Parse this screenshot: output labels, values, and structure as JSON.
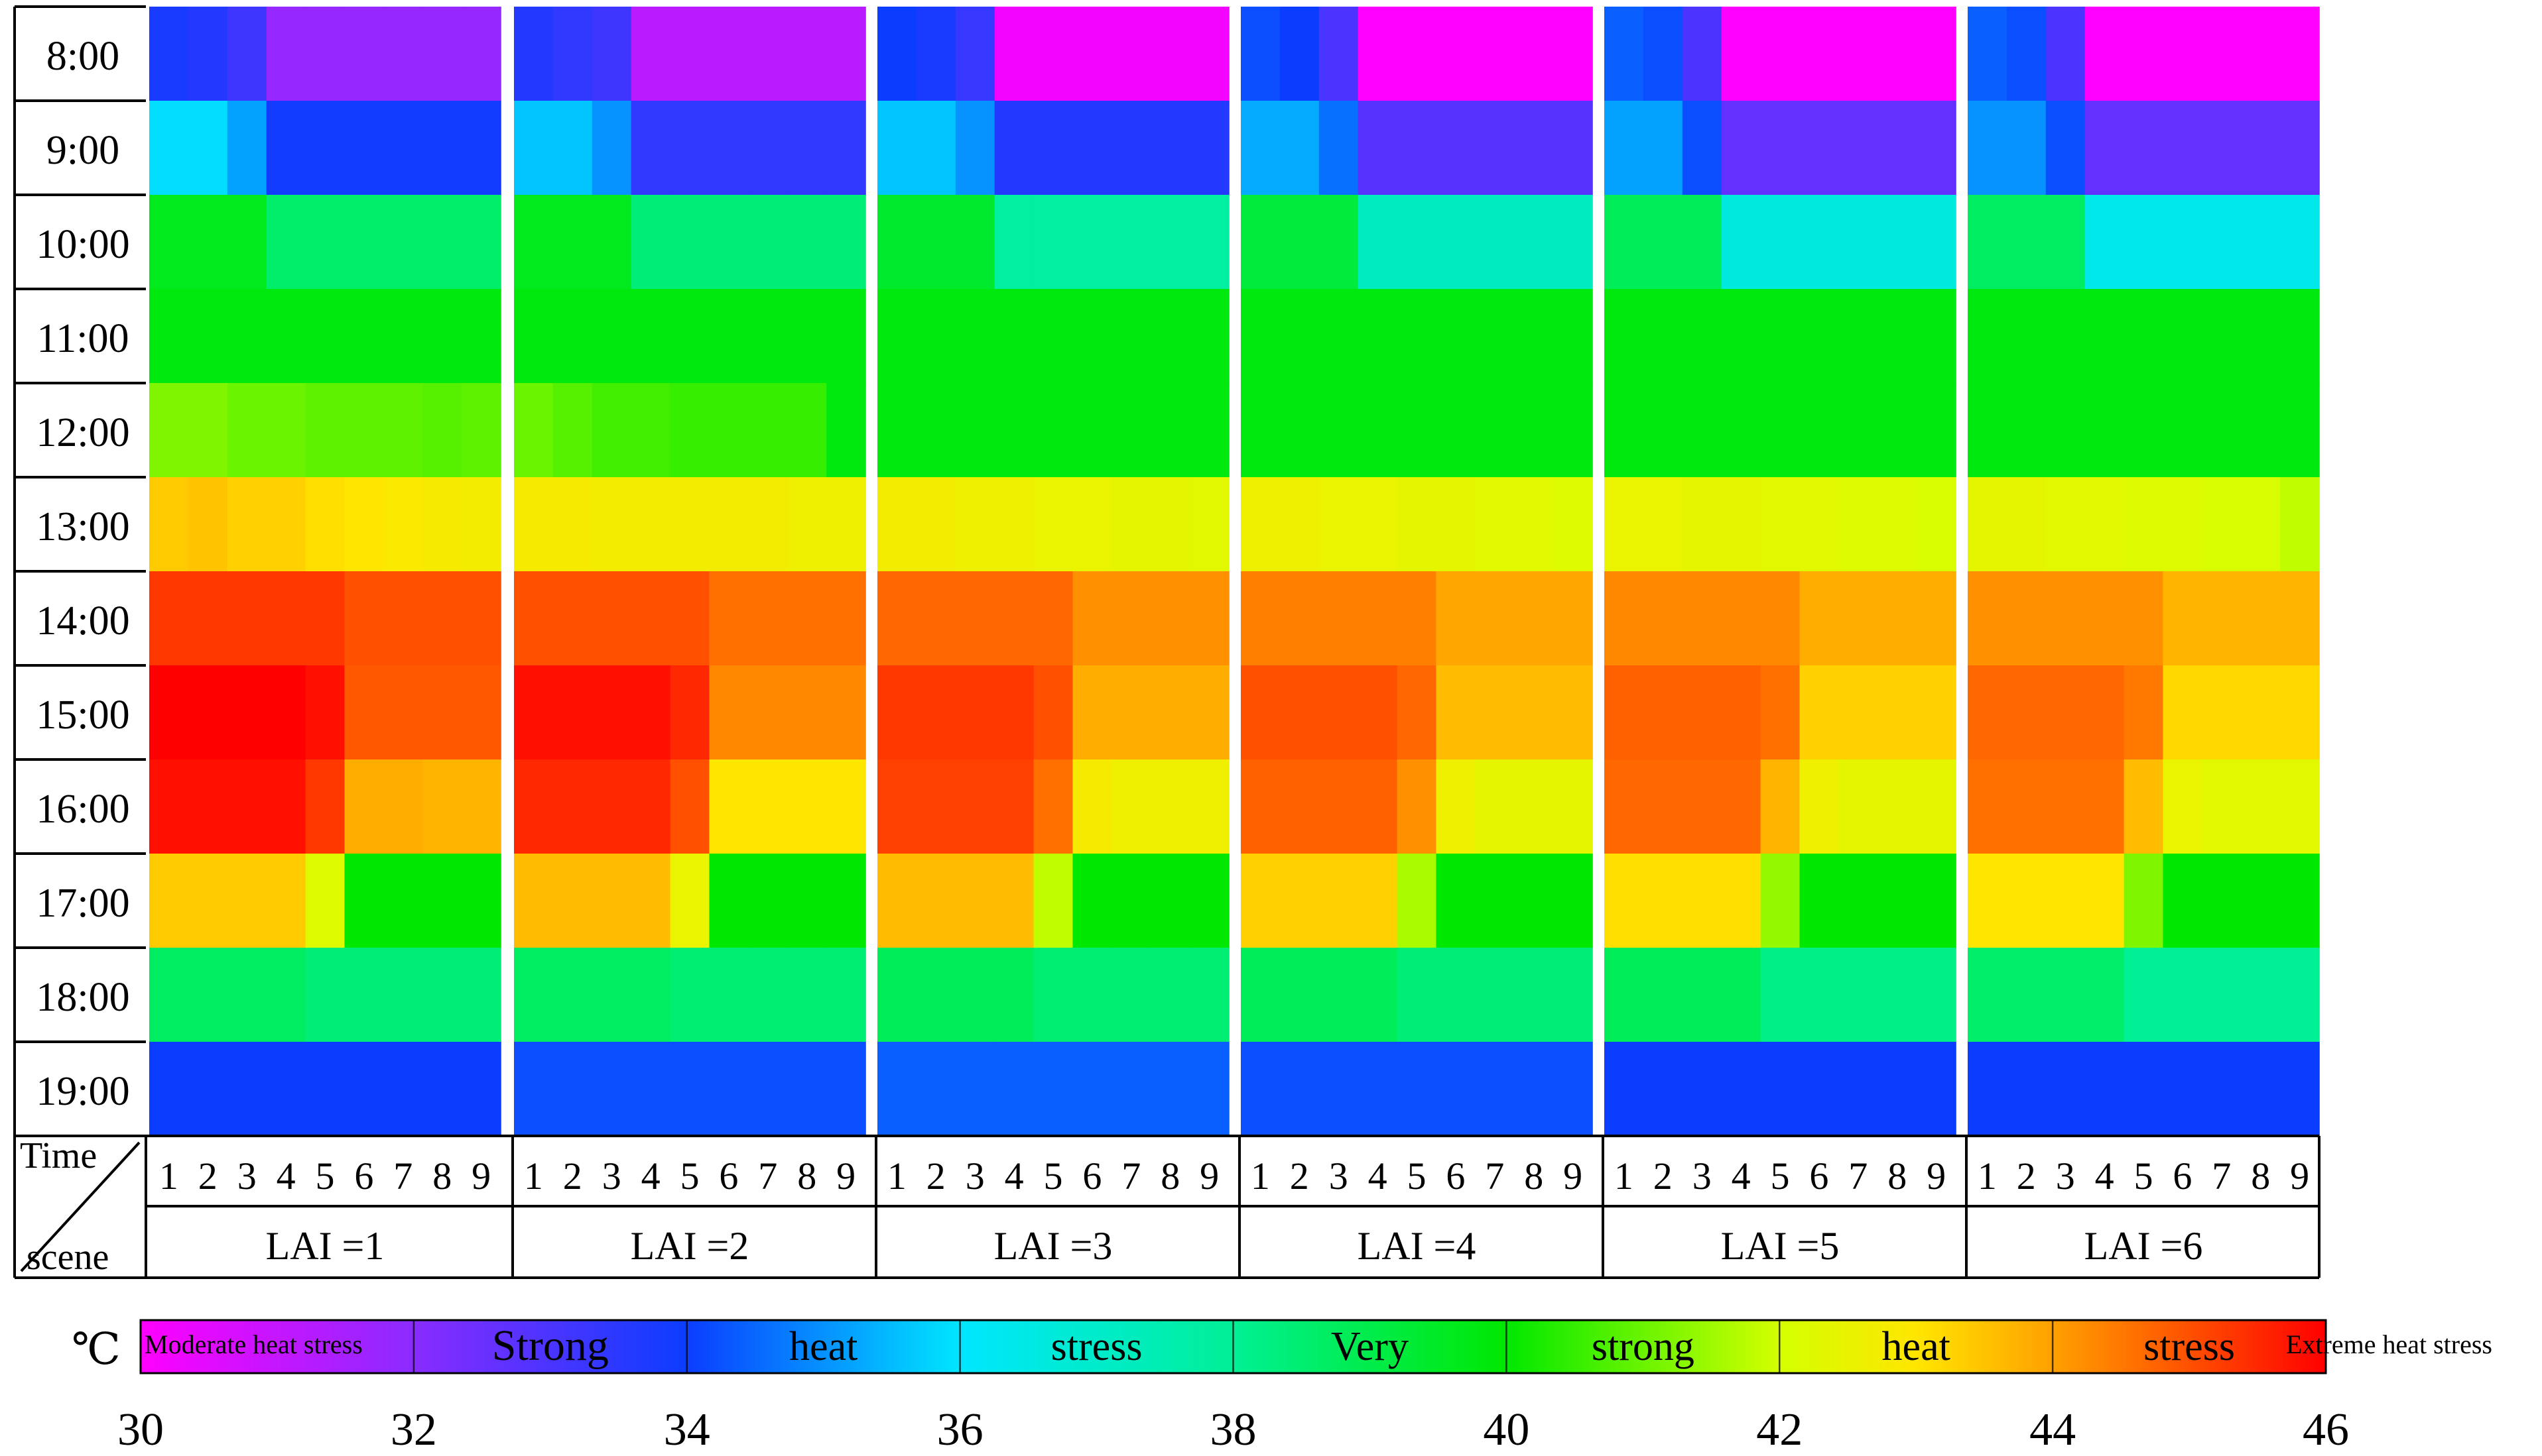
{
  "chart_data": {
    "type": "heatmap",
    "title": "",
    "unit": "℃",
    "corner": {
      "top": "Time",
      "bottom": "scene"
    },
    "times": [
      "8:00",
      "9:00",
      "10:00",
      "11:00",
      "12:00",
      "13:00",
      "14:00",
      "15:00",
      "16:00",
      "17:00",
      "18:00",
      "19:00"
    ],
    "scenes": [
      "1",
      "2",
      "3",
      "4",
      "5",
      "6",
      "7",
      "8",
      "9"
    ],
    "panels": [
      {
        "label": "LAI =1",
        "values": [
          [
            33.8,
            33.6,
            33.2,
            31.8,
            31.8,
            31.8,
            31.8,
            31.8,
            31.8
          ],
          [
            35.9,
            35.9,
            35.2,
            33.9,
            33.9,
            33.9,
            33.9,
            33.9,
            33.9
          ],
          [
            39.6,
            39.6,
            39.6,
            38.6,
            38.6,
            38.6,
            38.6,
            38.6,
            38.6
          ],
          [
            39.8,
            39.8,
            39.8,
            39.8,
            39.8,
            39.8,
            39.8,
            39.8,
            39.8
          ],
          [
            41.2,
            41.2,
            41.0,
            41.0,
            40.9,
            40.9,
            40.9,
            40.8,
            40.9
          ],
          [
            43.4,
            43.5,
            43.3,
            43.3,
            43.1,
            43.0,
            42.9,
            42.8,
            42.7
          ],
          [
            45.3,
            45.3,
            45.3,
            45.3,
            45.3,
            45.0,
            45.0,
            45.0,
            45.0
          ],
          [
            46.0,
            46.0,
            46.0,
            46.0,
            45.8,
            44.9,
            44.9,
            44.9,
            44.9
          ],
          [
            45.8,
            45.8,
            45.8,
            45.8,
            45.3,
            43.8,
            43.8,
            43.7,
            43.7
          ],
          [
            43.4,
            43.4,
            43.4,
            43.4,
            42.2,
            40.0,
            40.0,
            40.0,
            40.0
          ],
          [
            38.7,
            38.7,
            38.7,
            38.7,
            38.4,
            38.4,
            38.4,
            38.4,
            38.4
          ],
          [
            34.0,
            34.0,
            34.0,
            34.0,
            34.0,
            34.0,
            34.0,
            34.0,
            34.0
          ]
        ]
      },
      {
        "label": "LAI =2",
        "values": [
          [
            33.6,
            33.4,
            33.2,
            31.2,
            31.2,
            31.2,
            31.2,
            31.2,
            31.2
          ],
          [
            35.6,
            35.6,
            35.0,
            33.4,
            33.4,
            33.4,
            33.4,
            33.4,
            33.4
          ],
          [
            39.6,
            39.6,
            39.6,
            38.4,
            38.4,
            38.4,
            38.4,
            38.4,
            38.4
          ],
          [
            39.8,
            39.8,
            39.8,
            39.8,
            39.8,
            39.8,
            39.8,
            39.8,
            39.8
          ],
          [
            41.0,
            40.8,
            40.6,
            40.6,
            40.5,
            40.5,
            40.5,
            40.5,
            39.8
          ],
          [
            42.8,
            42.8,
            42.7,
            42.7,
            42.7,
            42.7,
            42.7,
            42.6,
            42.6
          ],
          [
            45.0,
            45.0,
            45.0,
            45.0,
            45.0,
            44.6,
            44.6,
            44.6,
            44.6
          ],
          [
            45.8,
            45.8,
            45.8,
            45.8,
            45.5,
            44.3,
            44.3,
            44.3,
            44.3
          ],
          [
            45.5,
            45.5,
            45.5,
            45.5,
            45.0,
            43.0,
            43.0,
            43.0,
            43.0
          ],
          [
            43.6,
            43.6,
            43.6,
            43.6,
            42.5,
            40.0,
            40.0,
            40.0,
            40.0
          ],
          [
            38.7,
            38.7,
            38.7,
            38.7,
            38.5,
            38.5,
            38.5,
            38.5,
            38.5
          ],
          [
            34.2,
            34.2,
            34.2,
            34.2,
            34.2,
            34.2,
            34.2,
            34.2,
            34.2
          ]
        ]
      },
      {
        "label": "LAI =3",
        "values": [
          [
            34.0,
            33.8,
            33.3,
            30.2,
            30.2,
            30.2,
            30.2,
            30.2,
            30.2
          ],
          [
            35.6,
            35.6,
            35.0,
            33.6,
            33.6,
            33.6,
            33.6,
            33.6,
            33.6
          ],
          [
            39.4,
            39.4,
            39.4,
            37.8,
            37.8,
            37.8,
            37.8,
            37.8,
            37.8
          ],
          [
            39.8,
            39.8,
            39.8,
            39.8,
            39.8,
            39.8,
            39.8,
            39.8,
            39.8
          ],
          [
            39.8,
            39.8,
            39.8,
            39.8,
            39.8,
            39.8,
            39.8,
            39.8,
            39.8
          ],
          [
            42.7,
            42.7,
            42.6,
            42.6,
            42.5,
            42.5,
            42.4,
            42.4,
            42.3
          ],
          [
            44.7,
            44.7,
            44.7,
            44.7,
            44.7,
            44.2,
            44.2,
            44.2,
            44.2
          ],
          [
            45.3,
            45.3,
            45.3,
            45.3,
            45.0,
            43.8,
            43.8,
            43.8,
            43.8
          ],
          [
            45.2,
            45.2,
            45.2,
            45.2,
            44.6,
            42.8,
            42.6,
            42.6,
            42.6
          ],
          [
            43.6,
            43.6,
            43.6,
            43.6,
            41.8,
            40.0,
            40.0,
            40.0,
            40.0
          ],
          [
            38.8,
            38.8,
            38.8,
            38.8,
            38.5,
            38.5,
            38.5,
            38.5,
            38.5
          ],
          [
            34.4,
            34.4,
            34.4,
            34.4,
            34.4,
            34.4,
            34.4,
            34.4,
            34.4
          ]
        ]
      },
      {
        "label": "LAI =4",
        "values": [
          [
            34.2,
            34.0,
            33.0,
            30.0,
            30.0,
            30.0,
            30.0,
            30.0,
            30.0
          ],
          [
            35.3,
            35.3,
            34.6,
            32.8,
            32.8,
            32.8,
            32.8,
            32.8,
            32.8
          ],
          [
            39.2,
            39.2,
            39.2,
            37.2,
            37.2,
            37.2,
            37.2,
            37.2,
            37.2
          ],
          [
            39.8,
            39.8,
            39.8,
            39.8,
            39.8,
            39.8,
            39.8,
            39.8,
            39.8
          ],
          [
            39.8,
            39.8,
            39.8,
            39.8,
            39.8,
            39.8,
            39.8,
            39.8,
            39.8
          ],
          [
            42.6,
            42.6,
            42.5,
            42.5,
            42.4,
            42.4,
            42.3,
            42.3,
            42.2
          ],
          [
            44.4,
            44.4,
            44.4,
            44.4,
            44.4,
            43.9,
            43.9,
            43.9,
            43.9
          ],
          [
            45.0,
            45.0,
            45.0,
            45.0,
            44.7,
            43.6,
            43.6,
            43.6,
            43.6
          ],
          [
            44.8,
            44.8,
            44.8,
            44.8,
            44.2,
            42.6,
            42.4,
            42.4,
            42.4
          ],
          [
            43.3,
            43.3,
            43.3,
            43.3,
            41.6,
            40.0,
            40.0,
            40.0,
            40.0
          ],
          [
            38.8,
            38.8,
            38.8,
            38.8,
            38.4,
            38.4,
            38.4,
            38.4,
            38.4
          ],
          [
            34.2,
            34.2,
            34.2,
            34.2,
            34.2,
            34.2,
            34.2,
            34.2,
            34.2
          ]
        ]
      },
      {
        "label": "LAI =5",
        "values": [
          [
            34.4,
            34.2,
            33.0,
            30.0,
            30.0,
            30.0,
            30.0,
            30.0,
            30.0
          ],
          [
            35.2,
            35.2,
            34.2,
            32.6,
            32.6,
            32.6,
            32.6,
            32.6,
            32.6
          ],
          [
            38.8,
            38.8,
            38.8,
            36.6,
            36.6,
            36.6,
            36.6,
            36.6,
            36.6
          ],
          [
            39.8,
            39.8,
            39.8,
            39.8,
            39.8,
            39.8,
            39.8,
            39.8,
            39.8
          ],
          [
            39.8,
            39.8,
            39.8,
            39.8,
            39.8,
            39.8,
            39.8,
            39.8,
            39.8
          ],
          [
            42.5,
            42.5,
            42.4,
            42.4,
            42.3,
            42.3,
            42.2,
            42.2,
            42.1
          ],
          [
            44.3,
            44.3,
            44.3,
            44.3,
            44.3,
            43.8,
            43.8,
            43.8,
            43.8
          ],
          [
            44.8,
            44.8,
            44.8,
            44.8,
            44.6,
            43.3,
            43.3,
            43.3,
            43.3
          ],
          [
            44.7,
            44.7,
            44.7,
            44.7,
            43.7,
            42.6,
            42.4,
            42.4,
            42.4
          ],
          [
            43.1,
            43.1,
            43.1,
            43.1,
            41.4,
            40.0,
            40.0,
            40.0,
            40.0
          ],
          [
            38.8,
            38.8,
            38.8,
            38.8,
            38.2,
            38.2,
            38.2,
            38.2,
            38.2
          ],
          [
            34.0,
            34.0,
            34.0,
            34.0,
            34.0,
            34.0,
            34.0,
            34.0,
            34.0
          ]
        ]
      },
      {
        "label": "LAI =6",
        "values": [
          [
            34.4,
            34.2,
            33.0,
            30.0,
            30.0,
            30.0,
            30.0,
            30.0,
            30.0
          ],
          [
            35.0,
            35.0,
            34.2,
            32.6,
            32.6,
            32.6,
            32.6,
            32.6,
            32.6
          ],
          [
            38.7,
            38.7,
            38.7,
            36.4,
            36.4,
            36.4,
            36.4,
            36.4,
            36.4
          ],
          [
            39.8,
            39.8,
            39.8,
            39.8,
            39.8,
            39.8,
            39.8,
            39.8,
            39.8
          ],
          [
            39.8,
            39.8,
            39.8,
            39.8,
            39.8,
            39.8,
            39.8,
            39.8,
            39.8
          ],
          [
            42.4,
            42.4,
            42.3,
            42.3,
            42.2,
            42.2,
            42.1,
            42.1,
            41.8
          ],
          [
            44.2,
            44.2,
            44.2,
            44.2,
            44.2,
            43.7,
            43.7,
            43.7,
            43.7
          ],
          [
            44.7,
            44.7,
            44.7,
            44.7,
            44.5,
            43.2,
            43.2,
            43.2,
            43.2
          ],
          [
            44.6,
            44.6,
            44.6,
            44.6,
            43.6,
            42.5,
            42.3,
            42.3,
            42.3
          ],
          [
            43.0,
            43.0,
            43.0,
            43.0,
            41.2,
            40.0,
            40.0,
            40.0,
            40.0
          ],
          [
            38.6,
            38.6,
            38.6,
            38.6,
            38.0,
            38.0,
            38.0,
            38.0,
            38.0
          ],
          [
            34.0,
            34.0,
            34.0,
            34.0,
            34.0,
            34.0,
            34.0,
            34.0,
            34.0
          ]
        ]
      }
    ],
    "colorbar": {
      "range": [
        30,
        46
      ],
      "ticks": [
        30,
        32,
        34,
        36,
        38,
        40,
        42,
        44,
        46
      ],
      "stops": [
        {
          "value": 30,
          "color": "#ff00ff"
        },
        {
          "value": 32,
          "color": "#8a2bff"
        },
        {
          "value": 34,
          "color": "#0b3dff"
        },
        {
          "value": 36,
          "color": "#00e6ff"
        },
        {
          "value": 38,
          "color": "#00f096"
        },
        {
          "value": 40,
          "color": "#00e800"
        },
        {
          "value": 42,
          "color": "#d4ff00"
        },
        {
          "value": 43,
          "color": "#ffe600"
        },
        {
          "value": 44,
          "color": "#ffa000"
        },
        {
          "value": 46,
          "color": "#ff0000"
        }
      ],
      "labels": [
        "Moderate heat stress",
        "Strong",
        "heat",
        "stress",
        "Very",
        "strong",
        "heat",
        "stress",
        "Extreme heat stress"
      ]
    }
  }
}
